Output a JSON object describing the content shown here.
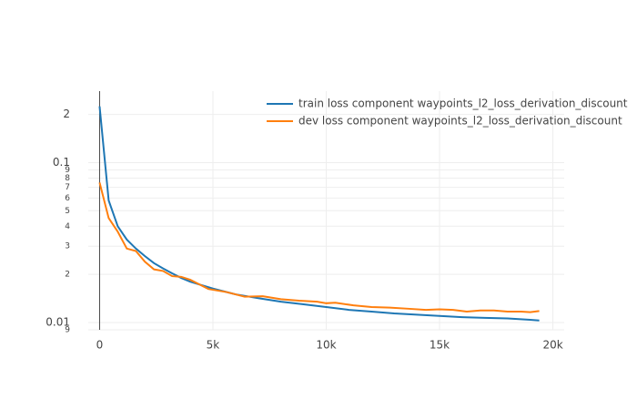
{
  "chart_data": {
    "type": "line",
    "y_scale": "log",
    "grid": true,
    "legend_position": "top-right",
    "xlim": [
      -500,
      20500
    ],
    "xticks": [
      0,
      {
        "value": 5000,
        "label": "5k"
      },
      {
        "value": 10000,
        "label": "10k"
      },
      {
        "value": 15000,
        "label": "15k"
      },
      {
        "value": 20000,
        "label": "20k"
      }
    ],
    "ylim": [
      0.009,
      0.28
    ],
    "yticks": [
      {
        "value": 0.009,
        "label": "9"
      },
      0.01,
      {
        "value": 0.02,
        "label": "2"
      },
      {
        "value": 0.03,
        "label": "3"
      },
      {
        "value": 0.04,
        "label": "4"
      },
      {
        "value": 0.05,
        "label": "5"
      },
      {
        "value": 0.06,
        "label": "6"
      },
      {
        "value": 0.07,
        "label": "7"
      },
      {
        "value": 0.08,
        "label": "8"
      },
      {
        "value": 0.09,
        "label": "9"
      },
      0.1,
      {
        "value": 0.2,
        "label": "2"
      }
    ],
    "series": [
      {
        "name": "train loss component waypoints_l2_loss_derivation_discount",
        "color": "#1f77b4",
        "x": [
          0,
          400,
          800,
          1200,
          1600,
          2000,
          2400,
          2800,
          3200,
          3600,
          4000,
          5000,
          6000,
          7000,
          8000,
          9000,
          10000,
          11000,
          12000,
          13000,
          14000,
          15000,
          16000,
          17000,
          18000,
          19000,
          19400
        ],
        "values": [
          0.225,
          0.058,
          0.04,
          0.033,
          0.029,
          0.026,
          0.0235,
          0.0218,
          0.0203,
          0.019,
          0.018,
          0.0163,
          0.015,
          0.0142,
          0.0135,
          0.013,
          0.0125,
          0.012,
          0.0117,
          0.0114,
          0.0112,
          0.011,
          0.0108,
          0.0107,
          0.0106,
          0.0104,
          0.0103
        ]
      },
      {
        "name": "dev loss component waypoints_l2_loss_derivation_discount",
        "color": "#ff7f0e",
        "x": [
          0,
          400,
          800,
          1200,
          1600,
          2000,
          2400,
          2800,
          3200,
          3600,
          4000,
          4800,
          5600,
          6400,
          7200,
          8000,
          8800,
          9600,
          10000,
          10400,
          11200,
          12000,
          12800,
          13600,
          14400,
          15000,
          15600,
          16200,
          16800,
          17400,
          18000,
          18600,
          19000,
          19400
        ],
        "values": [
          0.075,
          0.045,
          0.037,
          0.029,
          0.028,
          0.024,
          0.0215,
          0.021,
          0.0195,
          0.0193,
          0.0185,
          0.0162,
          0.0155,
          0.0145,
          0.0146,
          0.014,
          0.0137,
          0.0135,
          0.0132,
          0.0133,
          0.0128,
          0.0125,
          0.0124,
          0.0122,
          0.012,
          0.0121,
          0.012,
          0.0117,
          0.0119,
          0.0119,
          0.0117,
          0.0117,
          0.0116,
          0.0118
        ]
      }
    ]
  }
}
